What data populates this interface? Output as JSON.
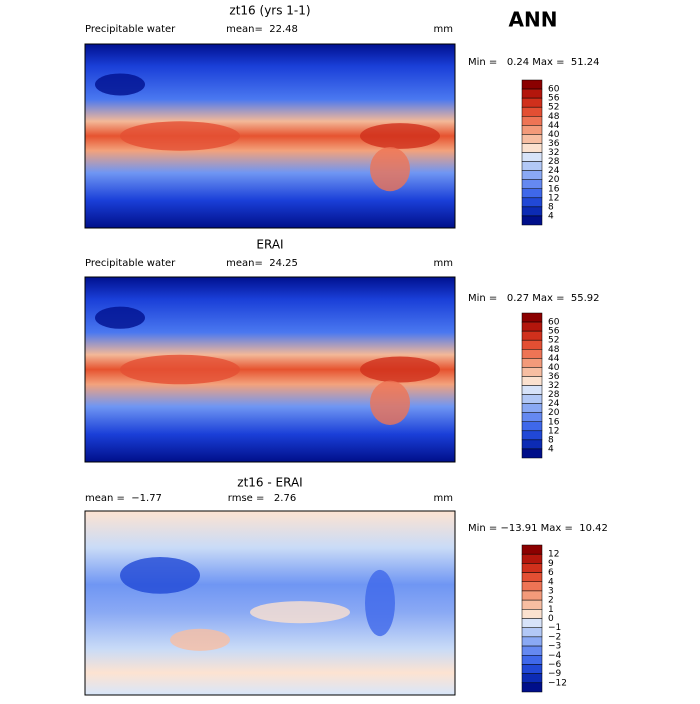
{
  "header": {
    "title": "ANN"
  },
  "panels": [
    {
      "title": "zt16 (yrs 1-1)",
      "left_label": "Precipitable water",
      "stat_text": "mean=  22.48",
      "units": "mm",
      "range_text": "Min =   0.24 Max =  51.24",
      "colorbar_labels": [
        "60",
        "56",
        "52",
        "48",
        "44",
        "40",
        "36",
        "32",
        "28",
        "24",
        "20",
        "16",
        "12",
        "8",
        "4"
      ]
    },
    {
      "title": "ERAI",
      "left_label": "Precipitable water",
      "stat_text": "mean=  24.25",
      "units": "mm",
      "range_text": "Min =   0.27 Max =  55.92",
      "colorbar_labels": [
        "60",
        "56",
        "52",
        "48",
        "44",
        "40",
        "36",
        "32",
        "28",
        "24",
        "20",
        "16",
        "12",
        "8",
        "4"
      ]
    },
    {
      "title": "zt16 - ERAI",
      "left_label": "mean =  −1.77",
      "stat_text": "rmse =   2.76",
      "units": "mm",
      "range_text": "Min = −13.91 Max =  10.42",
      "colorbar_labels": [
        "12",
        "9",
        "6",
        "4",
        "3",
        "2",
        "1",
        "0",
        "−1",
        "−2",
        "−3",
        "−4",
        "−6",
        "−9",
        "−12"
      ]
    }
  ]
}
